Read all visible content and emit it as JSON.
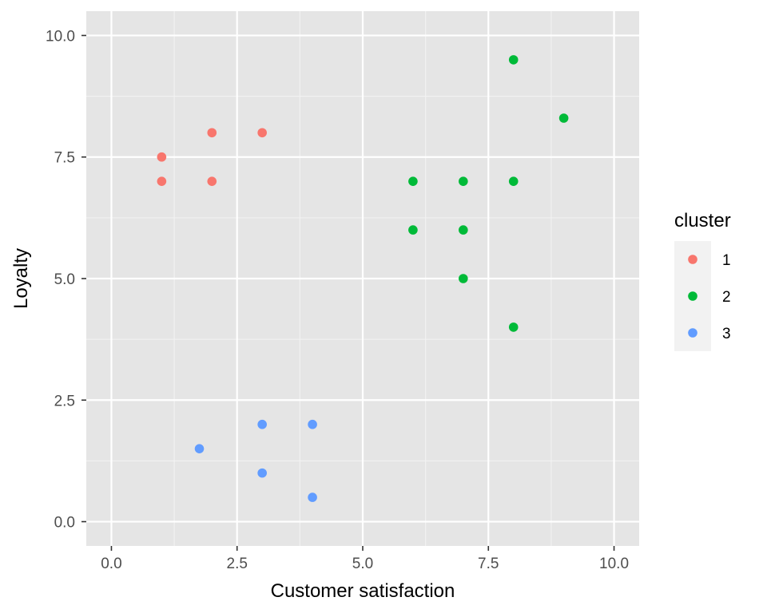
{
  "chart_data": {
    "type": "scatter",
    "title": "",
    "xlabel": "Customer satisfaction",
    "ylabel": "Loyalty",
    "xlim": [
      -0.5,
      10.5
    ],
    "ylim": [
      -0.5,
      10.5
    ],
    "x_ticks": [
      0,
      2.5,
      5,
      7.5,
      10
    ],
    "x_tick_labels": [
      "0.0",
      "2.5",
      "5.0",
      "7.5",
      "10.0"
    ],
    "y_ticks": [
      0,
      2.5,
      5,
      7.5,
      10
    ],
    "y_tick_labels": [
      "0.0",
      "2.5",
      "5.0",
      "7.5",
      "10.0"
    ],
    "grid": true,
    "legend": {
      "title": "cluster",
      "position": "right"
    },
    "series": [
      {
        "name": "1",
        "color": "#F8766D",
        "points": [
          {
            "x": 1,
            "y": 7.5
          },
          {
            "x": 1,
            "y": 7
          },
          {
            "x": 2,
            "y": 8
          },
          {
            "x": 2,
            "y": 7
          },
          {
            "x": 3,
            "y": 8
          }
        ]
      },
      {
        "name": "2",
        "color": "#00BA38",
        "points": [
          {
            "x": 8,
            "y": 9.5
          },
          {
            "x": 9,
            "y": 8.3
          },
          {
            "x": 6,
            "y": 7
          },
          {
            "x": 7,
            "y": 7
          },
          {
            "x": 8,
            "y": 7
          },
          {
            "x": 6,
            "y": 6
          },
          {
            "x": 7,
            "y": 6
          },
          {
            "x": 7,
            "y": 5
          },
          {
            "x": 8,
            "y": 4
          }
        ]
      },
      {
        "name": "3",
        "color": "#619CFF",
        "points": [
          {
            "x": 1.75,
            "y": 1.5
          },
          {
            "x": 3,
            "y": 2
          },
          {
            "x": 4,
            "y": 2
          },
          {
            "x": 3,
            "y": 1
          },
          {
            "x": 4,
            "y": 0.5
          }
        ]
      }
    ]
  },
  "theme": {
    "panel_bg": "#E5E5E5",
    "grid_major": "#FFFFFF",
    "grid_minor": "#F2F2F2",
    "tick_color": "#333333",
    "legend_key_bg": "#F2F2F2"
  }
}
